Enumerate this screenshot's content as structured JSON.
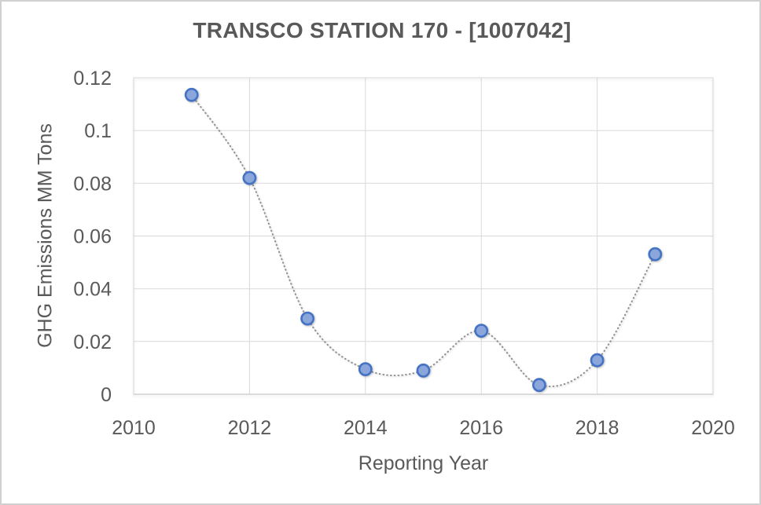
{
  "window": {
    "background": "#ffffff",
    "border_color": "#d0d0d0"
  },
  "chart_data": {
    "type": "scatter",
    "title": "TRANSCO STATION 170 - [1007042]",
    "xlabel": "Reporting Year",
    "ylabel": "GHG Emissions MM Tons",
    "x": [
      2011,
      2012,
      2013,
      2014,
      2015,
      2016,
      2017,
      2018,
      2019
    ],
    "y": [
      0.1135,
      0.082,
      0.0287,
      0.0095,
      0.009,
      0.0241,
      0.0035,
      0.0129,
      0.0531
    ],
    "xlim": [
      2010,
      2020
    ],
    "ylim": [
      0,
      0.12
    ],
    "xticks": [
      2010,
      2012,
      2014,
      2016,
      2018,
      2020
    ],
    "xtick_labels": [
      "2010",
      "2012",
      "2014",
      "2016",
      "2018",
      "2020"
    ],
    "yticks": [
      0,
      0.02,
      0.04,
      0.06,
      0.08,
      0.1,
      0.12
    ],
    "ytick_labels": [
      "0",
      "0.02",
      "0.04",
      "0.06",
      "0.08",
      "0.1",
      "0.12"
    ],
    "grid": true,
    "legend": "none",
    "line_style": "dotted-smooth",
    "line_color": "#8f8f8f",
    "marker_fill": "#8ba6db",
    "marker_border": "#4472c4",
    "grid_color": "#d9d9d9",
    "axis_line_color": "#c6c6c6",
    "text_color": "#595959"
  }
}
